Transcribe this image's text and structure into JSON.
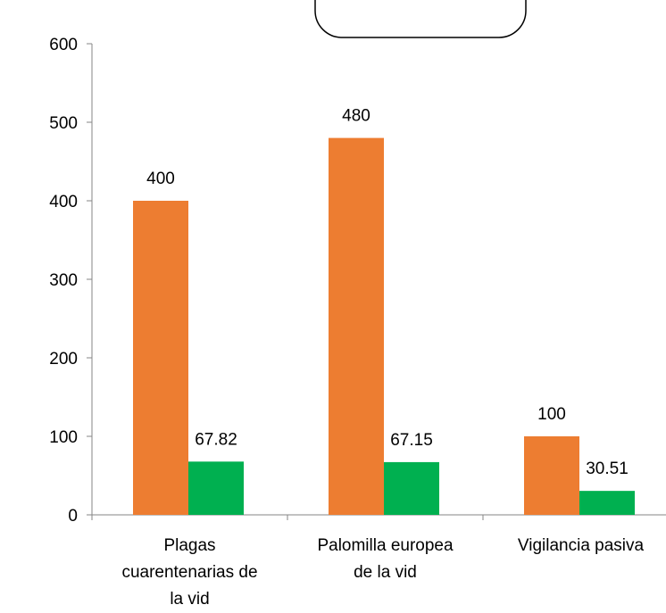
{
  "chart_data": {
    "type": "bar",
    "categories": [
      [
        "Plagas",
        "cuarentenarias de",
        "la vid"
      ],
      [
        "Palomilla europea",
        "de la vid"
      ],
      [
        "Vigilancia pasiva"
      ]
    ],
    "series": [
      {
        "values": [
          400,
          480,
          100
        ],
        "data_labels": [
          "400",
          "480",
          "100"
        ],
        "color": "#ED7D31"
      },
      {
        "values": [
          67.82,
          67.15,
          30.51
        ],
        "data_labels": [
          "67.82",
          "67.15",
          "30.51"
        ],
        "color": "#00B050"
      }
    ],
    "yticks": [
      "0",
      "100",
      "200",
      "300",
      "400",
      "500",
      "600"
    ],
    "ylim": [
      0,
      600
    ],
    "grid": false,
    "legend": "none"
  }
}
